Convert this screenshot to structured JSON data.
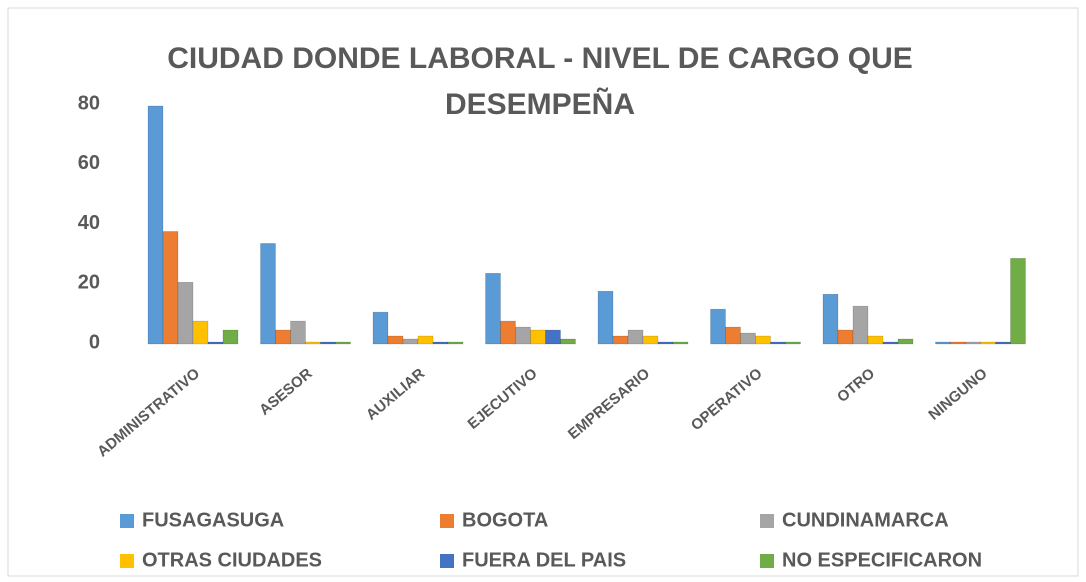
{
  "chart_data": {
    "type": "bar",
    "title": "CIUDAD DONDE LABORAL - NIVEL DE CARGO QUE DESEMPEÑA",
    "categories": [
      "ADMINISTRATIVO",
      "ASESOR",
      "AUXILIAR",
      "EJECUTIVO",
      "EMPRESARIO",
      "OPERATIVO",
      "OTRO",
      "NINGUNO"
    ],
    "series": [
      {
        "name": "FUSAGASUGA",
        "color": "#5b9bd5",
        "values": [
          79,
          33,
          10,
          23,
          17,
          11,
          16,
          0
        ]
      },
      {
        "name": "BOGOTA",
        "color": "#ed7d31",
        "values": [
          37,
          4,
          2,
          7,
          2,
          5,
          4,
          0
        ]
      },
      {
        "name": "CUNDINAMARCA",
        "color": "#a5a5a5",
        "values": [
          20,
          7,
          1,
          5,
          4,
          3,
          12,
          0
        ]
      },
      {
        "name": "OTRAS CIUDADES",
        "color": "#ffc000",
        "values": [
          7,
          0,
          2,
          4,
          2,
          2,
          2,
          0
        ]
      },
      {
        "name": "FUERA DEL PAIS",
        "color": "#4472c4",
        "values": [
          0,
          0,
          0,
          4,
          0,
          0,
          0,
          0
        ]
      },
      {
        "name": "NO ESPECIFICARON",
        "color": "#70ad47",
        "values": [
          4,
          0,
          0,
          1,
          0,
          0,
          1,
          28
        ]
      }
    ],
    "ylim": [
      0,
      80
    ],
    "yticks": [
      0,
      20,
      40,
      60,
      80
    ],
    "grid": false,
    "legend": "bottom"
  }
}
